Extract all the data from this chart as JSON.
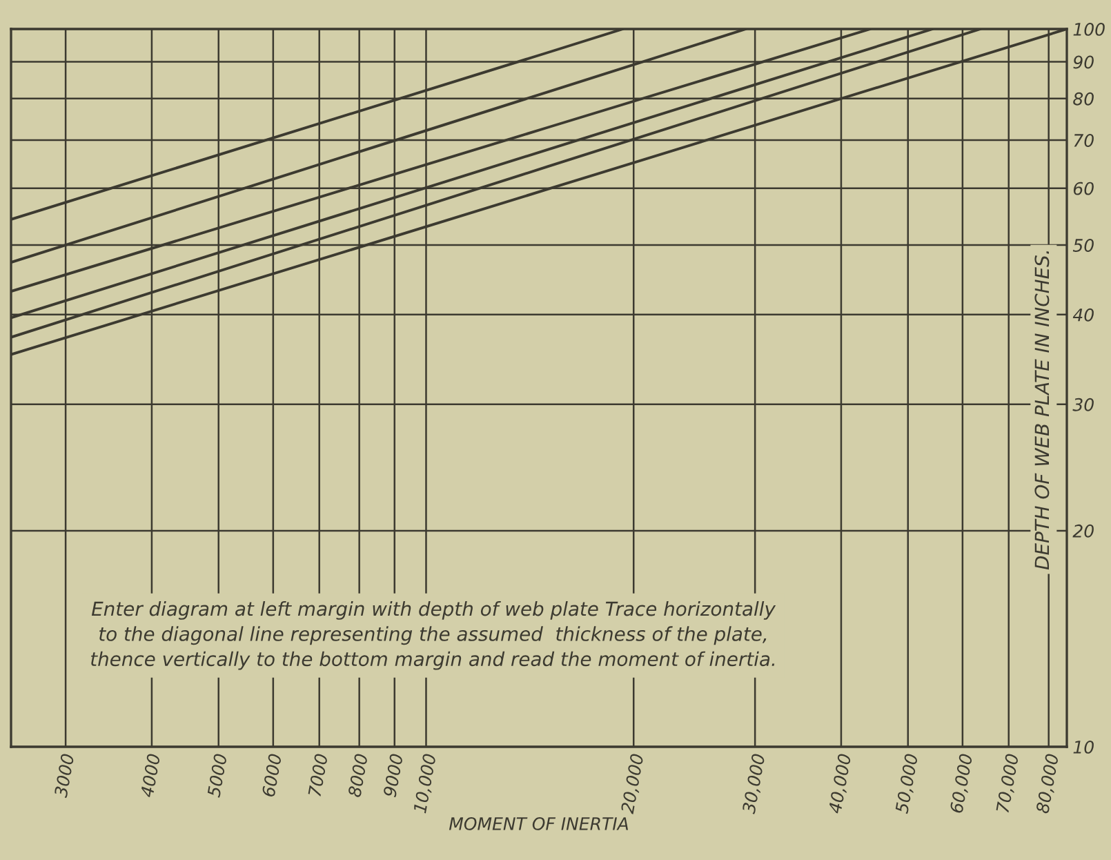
{
  "chart_data": {
    "type": "line",
    "xlabel": "MOMENT OF INERTIA",
    "ylabel": "DEPTH OF WEB PLATE IN INCHES.",
    "annotations": [
      "Enter diagram at left margin with depth of web plate Trace horizontally\nto the diagonal line representing the assumed  thickness of the plate,\nthence vertically to the bottom margin and read the moment of inertia."
    ],
    "log": "xy",
    "grid": true,
    "marker": "none",
    "line_style": "solid",
    "xlim": [
      2500,
      85000
    ],
    "ylim": [
      10,
      100
    ],
    "xticks": [
      3000,
      4000,
      5000,
      6000,
      7000,
      8000,
      9000,
      {
        "value": 10000,
        "label": "10,000"
      },
      {
        "value": 20000,
        "label": "20,000"
      },
      {
        "value": 30000,
        "label": "30,000"
      },
      {
        "value": 40000,
        "label": "40,000"
      },
      {
        "value": 50000,
        "label": "50,000"
      },
      {
        "value": 60000,
        "label": "60,000"
      },
      {
        "value": 70000,
        "label": "70,000"
      },
      {
        "value": 80000,
        "label": "80,000"
      }
    ],
    "yticks": [
      10,
      20,
      30,
      40,
      50,
      60,
      70,
      80,
      90,
      100
    ],
    "series": [
      {
        "color": "#3c3a30",
        "x": [
          2500,
          15000,
          19300
        ],
        "values": [
          54.3,
          92.7,
          100
        ]
      },
      {
        "color": "#3c3a30",
        "x": [
          2500,
          15000,
          29100
        ],
        "values": [
          47.3,
          81.7,
          100
        ]
      },
      {
        "color": "#3c3a30",
        "x": [
          2500,
          15000,
          44100
        ],
        "values": [
          43.1,
          72.9,
          100
        ]
      },
      {
        "color": "#3c3a30",
        "x": [
          2500,
          15000,
          54300
        ],
        "values": [
          39.6,
          67.9,
          100
        ]
      },
      {
        "color": "#3c3a30",
        "x": [
          2500,
          15000,
          63700
        ],
        "values": [
          37.2,
          64.3,
          100
        ]
      },
      {
        "color": "#3c3a30",
        "x": [
          2500,
          15000,
          85000
        ],
        "values": [
          35.2,
          59.8,
          100
        ]
      }
    ]
  }
}
